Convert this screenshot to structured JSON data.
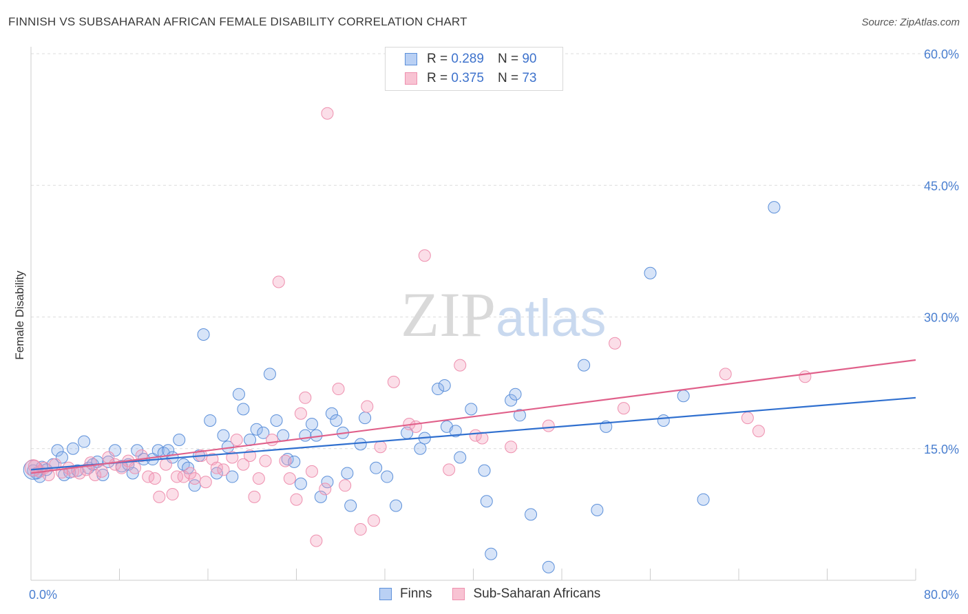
{
  "header": {
    "title": "FINNISH VS SUBSAHARAN AFRICAN FEMALE DISABILITY CORRELATION CHART",
    "source": "Source: ZipAtlas.com"
  },
  "watermark": {
    "part1": "ZIP",
    "part2": "atlas"
  },
  "legend": {
    "rows": [
      {
        "r_label": "R =",
        "r_value": "0.289",
        "n_label": "N =",
        "n_value": "90"
      },
      {
        "r_label": "R =",
        "r_value": "0.375",
        "n_label": "N =",
        "n_value": "73"
      }
    ]
  },
  "chart_data": {
    "type": "scatter",
    "title": "FINNISH VS SUBSAHARAN AFRICAN FEMALE DISABILITY CORRELATION CHART",
    "xlabel": "",
    "ylabel": "Female Disability",
    "xlim": [
      0,
      80
    ],
    "ylim": [
      0,
      60
    ],
    "x_tick_labels": [
      "0.0%",
      "80.0%"
    ],
    "y_ticks": [
      15,
      30,
      45,
      60
    ],
    "y_tick_labels": [
      "15.0%",
      "30.0%",
      "45.0%",
      "60.0%"
    ],
    "grid": "horizontal dashed",
    "legend_position": "top-center",
    "colors": {
      "finns": "#5b8fd9",
      "africans": "#ee8fae",
      "finns_line": "#2f6fcf",
      "africans_line": "#e0608a"
    },
    "series": [
      {
        "name": "Finns",
        "trend": {
          "x": [
            0,
            80
          ],
          "y": [
            12.6,
            20.8
          ]
        },
        "points": [
          [
            0.2,
            12.5
          ],
          [
            0.5,
            12.2
          ],
          [
            0.8,
            11.8
          ],
          [
            1.0,
            12.9
          ],
          [
            1.4,
            12.6
          ],
          [
            2.0,
            13.2
          ],
          [
            2.4,
            14.8
          ],
          [
            2.8,
            14.0
          ],
          [
            3.0,
            12.0
          ],
          [
            3.5,
            12.3
          ],
          [
            3.8,
            15.0
          ],
          [
            4.2,
            12.5
          ],
          [
            4.8,
            15.8
          ],
          [
            5.2,
            12.8
          ],
          [
            5.6,
            13.2
          ],
          [
            6.0,
            13.5
          ],
          [
            6.5,
            12.0
          ],
          [
            7.0,
            13.5
          ],
          [
            7.6,
            14.8
          ],
          [
            8.2,
            13.0
          ],
          [
            8.8,
            13.2
          ],
          [
            9.2,
            12.2
          ],
          [
            9.6,
            14.8
          ],
          [
            10.2,
            13.8
          ],
          [
            11.0,
            13.8
          ],
          [
            11.5,
            14.8
          ],
          [
            12.0,
            14.5
          ],
          [
            12.4,
            14.8
          ],
          [
            12.8,
            14.0
          ],
          [
            13.4,
            16.0
          ],
          [
            13.8,
            13.2
          ],
          [
            14.2,
            12.8
          ],
          [
            14.8,
            10.8
          ],
          [
            15.2,
            14.2
          ],
          [
            15.6,
            28.0
          ],
          [
            16.2,
            18.2
          ],
          [
            16.8,
            12.2
          ],
          [
            17.4,
            16.5
          ],
          [
            17.8,
            15.2
          ],
          [
            18.2,
            11.8
          ],
          [
            18.8,
            21.2
          ],
          [
            19.2,
            19.5
          ],
          [
            19.8,
            16.0
          ],
          [
            20.4,
            17.2
          ],
          [
            21.0,
            16.8
          ],
          [
            21.6,
            23.5
          ],
          [
            22.2,
            18.2
          ],
          [
            22.8,
            16.5
          ],
          [
            23.2,
            13.8
          ],
          [
            23.8,
            13.5
          ],
          [
            24.4,
            11.0
          ],
          [
            24.8,
            16.5
          ],
          [
            25.4,
            17.8
          ],
          [
            25.8,
            16.5
          ],
          [
            26.2,
            9.5
          ],
          [
            26.8,
            11.2
          ],
          [
            27.2,
            19.0
          ],
          [
            27.6,
            18.2
          ],
          [
            28.2,
            16.8
          ],
          [
            28.6,
            12.2
          ],
          [
            28.9,
            8.5
          ],
          [
            29.8,
            15.5
          ],
          [
            30.2,
            18.5
          ],
          [
            31.2,
            12.8
          ],
          [
            32.2,
            11.8
          ],
          [
            33.0,
            8.5
          ],
          [
            34.0,
            16.8
          ],
          [
            35.2,
            15.0
          ],
          [
            35.6,
            16.2
          ],
          [
            36.8,
            21.8
          ],
          [
            37.4,
            22.2
          ],
          [
            37.6,
            17.5
          ],
          [
            38.4,
            17.0
          ],
          [
            38.8,
            14.0
          ],
          [
            39.8,
            19.5
          ],
          [
            41.0,
            12.5
          ],
          [
            41.2,
            9.0
          ],
          [
            41.6,
            3.0
          ],
          [
            43.4,
            20.5
          ],
          [
            43.8,
            21.2
          ],
          [
            44.2,
            18.8
          ],
          [
            45.2,
            7.5
          ],
          [
            46.8,
            1.5
          ],
          [
            50.0,
            24.5
          ],
          [
            51.2,
            8.0
          ],
          [
            52.0,
            17.5
          ],
          [
            56.0,
            35.0
          ],
          [
            57.2,
            18.2
          ],
          [
            59.0,
            21.0
          ],
          [
            60.8,
            9.2
          ],
          [
            67.2,
            42.5
          ]
        ]
      },
      {
        "name": "Sub-Saharan Africans",
        "trend": {
          "x": [
            0,
            80
          ],
          "y": [
            12.2,
            25.1
          ]
        },
        "points": [
          [
            0.3,
            13.0
          ],
          [
            0.8,
            12.4
          ],
          [
            1.2,
            12.8
          ],
          [
            1.6,
            12.0
          ],
          [
            2.2,
            13.2
          ],
          [
            2.8,
            12.3
          ],
          [
            3.4,
            12.8
          ],
          [
            3.8,
            12.4
          ],
          [
            4.4,
            12.2
          ],
          [
            5.0,
            12.6
          ],
          [
            5.4,
            13.4
          ],
          [
            5.8,
            12.0
          ],
          [
            6.4,
            12.4
          ],
          [
            7.0,
            14.0
          ],
          [
            7.6,
            13.2
          ],
          [
            8.2,
            12.8
          ],
          [
            8.8,
            13.6
          ],
          [
            9.4,
            12.8
          ],
          [
            10.0,
            14.2
          ],
          [
            10.6,
            11.8
          ],
          [
            11.2,
            11.6
          ],
          [
            11.6,
            9.5
          ],
          [
            12.2,
            13.2
          ],
          [
            12.8,
            9.8
          ],
          [
            13.2,
            11.8
          ],
          [
            13.8,
            11.8
          ],
          [
            14.4,
            12.2
          ],
          [
            14.8,
            11.6
          ],
          [
            15.4,
            14.2
          ],
          [
            15.8,
            11.2
          ],
          [
            16.4,
            13.8
          ],
          [
            16.8,
            12.8
          ],
          [
            17.4,
            12.6
          ],
          [
            18.2,
            14.0
          ],
          [
            18.6,
            16.0
          ],
          [
            19.2,
            13.2
          ],
          [
            19.8,
            14.2
          ],
          [
            20.2,
            9.5
          ],
          [
            20.6,
            11.6
          ],
          [
            21.2,
            13.6
          ],
          [
            21.8,
            16.0
          ],
          [
            22.4,
            34.0
          ],
          [
            23.0,
            13.6
          ],
          [
            23.4,
            11.6
          ],
          [
            24.0,
            9.2
          ],
          [
            24.4,
            19.0
          ],
          [
            24.8,
            20.8
          ],
          [
            25.4,
            12.4
          ],
          [
            25.8,
            4.5
          ],
          [
            26.6,
            10.4
          ],
          [
            26.8,
            53.2
          ],
          [
            27.8,
            21.8
          ],
          [
            28.4,
            10.8
          ],
          [
            29.8,
            5.8
          ],
          [
            30.4,
            19.8
          ],
          [
            31.0,
            6.8
          ],
          [
            31.6,
            15.2
          ],
          [
            32.8,
            22.6
          ],
          [
            34.2,
            17.8
          ],
          [
            34.8,
            17.5
          ],
          [
            35.6,
            37.0
          ],
          [
            37.8,
            12.6
          ],
          [
            38.8,
            24.5
          ],
          [
            40.2,
            16.5
          ],
          [
            40.8,
            16.2
          ],
          [
            43.4,
            15.2
          ],
          [
            46.8,
            17.6
          ],
          [
            52.8,
            27.0
          ],
          [
            53.6,
            19.6
          ],
          [
            62.8,
            23.5
          ],
          [
            64.8,
            18.5
          ],
          [
            65.8,
            17.0
          ],
          [
            70.0,
            23.2
          ]
        ]
      }
    ]
  }
}
